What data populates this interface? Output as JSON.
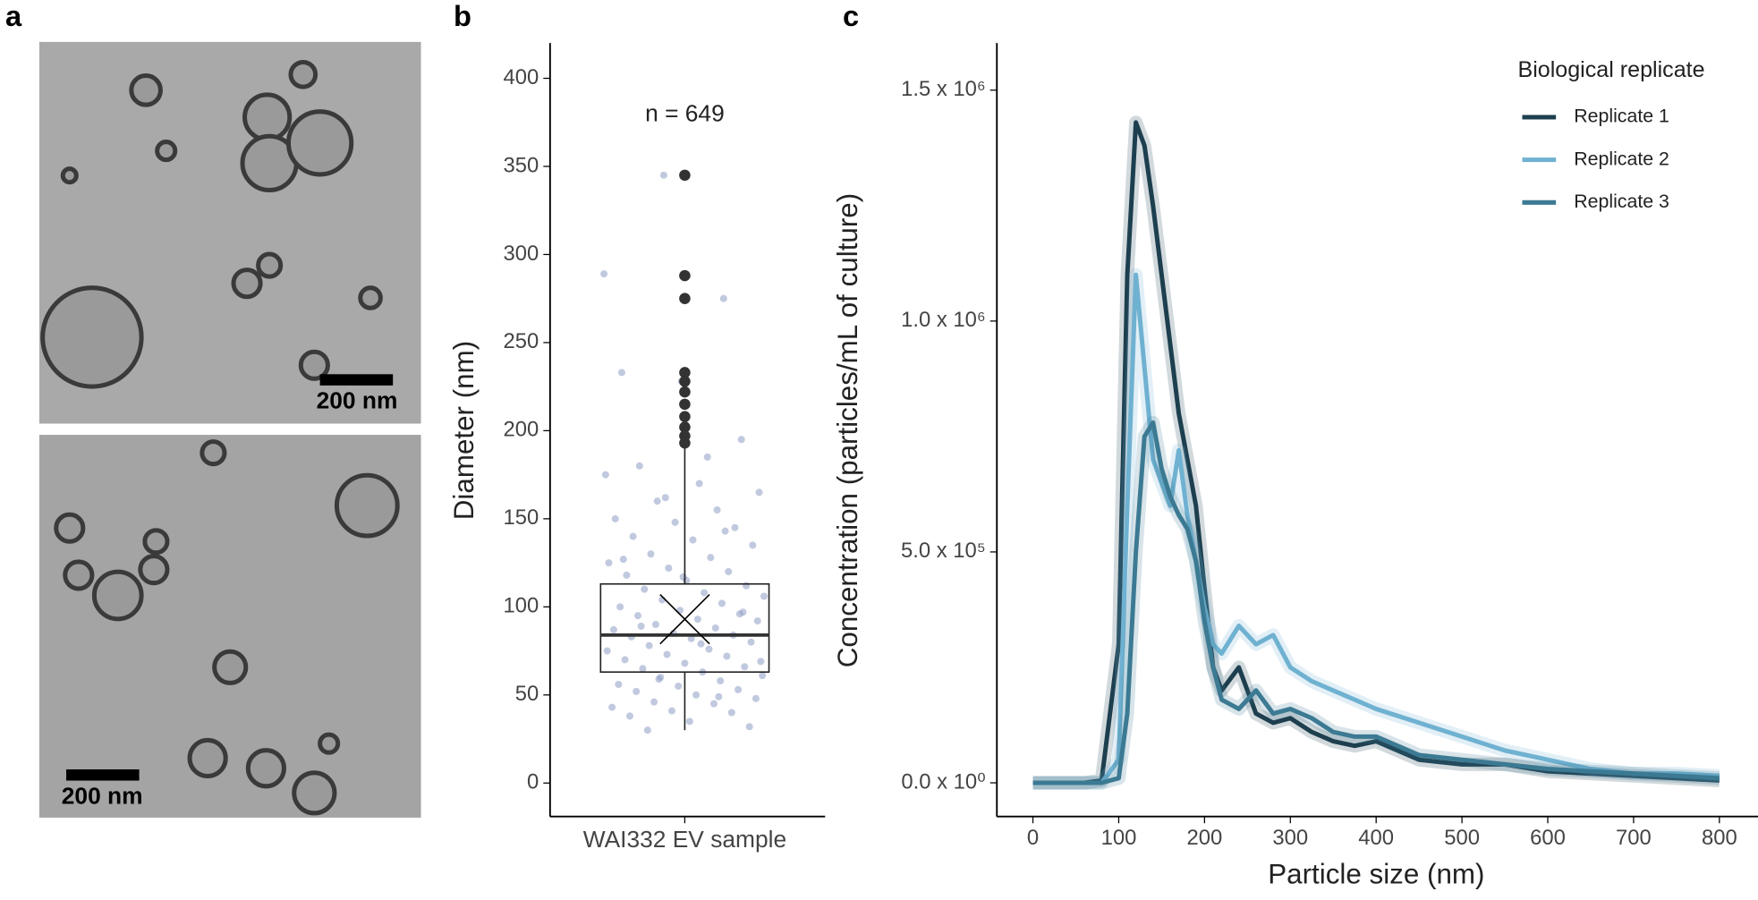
{
  "panel_labels": [
    "a",
    "b",
    "c"
  ],
  "images": {
    "scale_bar_labels": [
      "200 nm",
      "200 nm"
    ]
  },
  "chart_data": [
    {
      "type": "box",
      "ylabel": "Diameter (nm)",
      "categories": [
        "WAI332 EV sample"
      ],
      "annotation": "n = 649",
      "ylim": [
        -19,
        420
      ],
      "yticks": [
        0,
        50,
        100,
        150,
        200,
        250,
        300,
        350,
        400
      ],
      "box": {
        "min": 30,
        "q1": 63,
        "median": 84,
        "q3": 113,
        "max": 200,
        "mean": 93,
        "outliers": [
          345,
          288,
          275,
          233,
          228,
          222,
          215,
          208,
          202,
          197,
          193
        ]
      },
      "points": [
        289,
        345,
        275,
        233,
        228,
        195,
        180,
        170,
        165,
        160,
        155,
        150,
        148,
        145,
        140,
        138,
        135,
        130,
        128,
        125,
        122,
        120,
        118,
        115,
        112,
        110,
        108,
        106,
        104,
        102,
        100,
        98,
        96,
        95,
        93,
        92,
        90,
        88,
        87,
        85,
        84,
        83,
        82,
        80,
        78,
        76,
        75,
        73,
        72,
        70,
        68,
        66,
        65,
        63,
        61,
        60,
        58,
        56,
        55,
        53,
        52,
        50,
        48,
        46,
        45,
        43,
        41,
        40,
        38,
        35,
        32,
        30,
        185,
        175,
        162,
        143,
        127,
        117,
        97,
        89,
        79,
        69,
        59,
        49
      ],
      "color": "#8e9cc4"
    },
    {
      "type": "line",
      "xlabel": "Particle size (nm)",
      "ylabel": "Concentration (particles/mL of culture)",
      "legend_title": "Biological replicate",
      "xlim": [
        -42,
        845
      ],
      "xticks": [
        0,
        100,
        200,
        300,
        400,
        500,
        600,
        700,
        800
      ],
      "ylim": [
        -73000,
        1602000
      ],
      "yticks": [
        {
          "value": 0,
          "label": "0.0 x 10⁰"
        },
        {
          "value": 500000,
          "label": "5.0 x 10⁵"
        },
        {
          "value": 1000000,
          "label": "1.0 x 10⁶"
        },
        {
          "value": 1500000,
          "label": "1.5 x 10⁶"
        }
      ],
      "x": [
        0,
        60,
        80,
        100,
        110,
        120,
        130,
        140,
        150,
        160,
        170,
        180,
        190,
        200,
        210,
        220,
        240,
        260,
        280,
        300,
        325,
        350,
        375,
        400,
        450,
        500,
        550,
        600,
        650,
        700,
        750,
        800
      ],
      "series": [
        {
          "name": "Replicate 1",
          "color": "#1d3f4f",
          "values": [
            0,
            0,
            5000,
            300000,
            1100000,
            1430000,
            1380000,
            1250000,
            1100000,
            950000,
            800000,
            700000,
            600000,
            420000,
            250000,
            200000,
            250000,
            150000,
            130000,
            140000,
            110000,
            90000,
            80000,
            90000,
            50000,
            40000,
            40000,
            25000,
            20000,
            15000,
            10000,
            5000
          ]
        },
        {
          "name": "Replicate 2",
          "color": "#6fb1d1",
          "values": [
            0,
            0,
            0,
            50000,
            600000,
            1100000,
            900000,
            700000,
            650000,
            600000,
            720000,
            580000,
            480000,
            380000,
            300000,
            280000,
            340000,
            300000,
            320000,
            250000,
            220000,
            200000,
            180000,
            160000,
            130000,
            100000,
            70000,
            50000,
            30000,
            20000,
            20000,
            15000
          ]
        },
        {
          "name": "Replicate 3",
          "color": "#3c7a93",
          "values": [
            0,
            0,
            0,
            10000,
            150000,
            500000,
            750000,
            780000,
            680000,
            620000,
            580000,
            550000,
            480000,
            350000,
            250000,
            180000,
            160000,
            200000,
            150000,
            160000,
            140000,
            110000,
            100000,
            100000,
            60000,
            50000,
            40000,
            30000,
            25000,
            20000,
            15000,
            10000
          ]
        }
      ]
    }
  ]
}
